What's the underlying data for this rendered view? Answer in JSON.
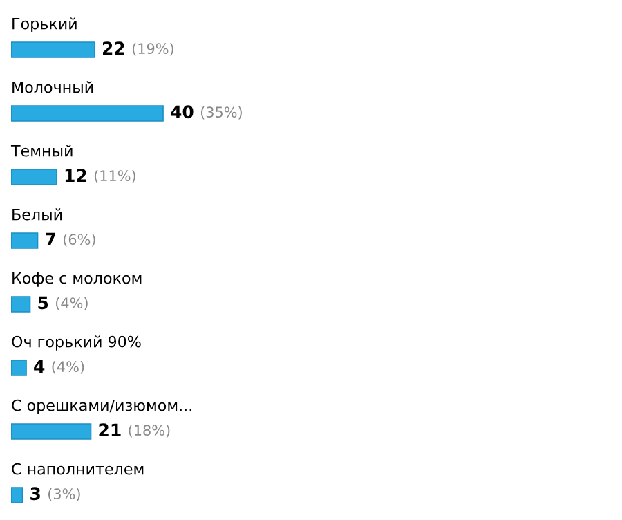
{
  "chart_data": {
    "type": "bar",
    "orientation": "horizontal",
    "categories": [
      "Горький",
      "Молочный",
      "Темный",
      "Белый",
      "Кофе с молоком",
      "Оч горький 90%",
      "С орешками/изюмом...",
      "С наполнителем"
    ],
    "values": [
      22,
      40,
      12,
      7,
      5,
      4,
      21,
      3
    ],
    "value_labels": [
      "22 (19%)",
      "40 (35%)",
      "12 (11%)",
      "7 (6%)",
      "5 (4%)",
      "4 (4%)",
      "21 (18%)",
      "3 (3%)"
    ],
    "color": "#29abe2"
  }
}
